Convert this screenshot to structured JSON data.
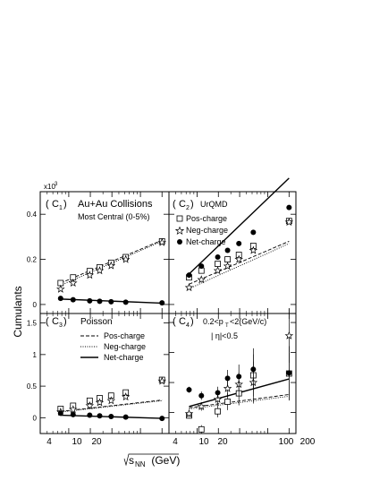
{
  "figure": {
    "scale_label": "x10",
    "scale_exponent": "3",
    "ylabel": "Cumulants",
    "xlabel_prefix": "s",
    "xlabel_sub": "NN",
    "xlabel_unit": " (GeV)",
    "x_ticks": [
      "4",
      "10",
      "20",
      "40",
      "100",
      "200"
    ],
    "x_scale": "log",
    "xlim": [
      4,
      250
    ],
    "colors": {
      "ink": "#000000",
      "background": "#ffffff"
    }
  },
  "chart_data": [
    {
      "type": "scatter",
      "id": "C1",
      "panel_label": "C",
      "panel_sub": "1",
      "annotations": [
        "Au+Au Collisions",
        "Most Central (0-5%)"
      ],
      "ylim": [
        -0.04,
        0.5
      ],
      "ytick_values": [
        0,
        0.2,
        0.4
      ],
      "ytick_labels": [
        "0",
        "0.2",
        "0.4"
      ],
      "x": [
        7.7,
        11.5,
        19.6,
        27,
        39,
        62.4,
        200
      ],
      "series": [
        {
          "name": "Pos-charge",
          "marker": "open-square",
          "values": [
            0.095,
            0.12,
            0.148,
            0.165,
            0.185,
            0.21,
            0.28
          ]
        },
        {
          "name": "Neg-charge",
          "marker": "open-star",
          "values": [
            0.068,
            0.095,
            0.13,
            0.15,
            0.172,
            0.2,
            0.275
          ]
        },
        {
          "name": "Net-charge",
          "marker": "filled-circle",
          "values": [
            0.027,
            0.021,
            0.016,
            0.014,
            0.012,
            0.01,
            0.007
          ]
        }
      ],
      "lines": [
        {
          "style": "dashed",
          "x": [
            7.7,
            200
          ],
          "y": [
            0.095,
            0.285
          ]
        },
        {
          "style": "dotted",
          "x": [
            7.7,
            200
          ],
          "y": [
            0.085,
            0.28
          ]
        },
        {
          "style": "solid",
          "x": [
            7.7,
            200
          ],
          "y": [
            0.024,
            0.006
          ]
        }
      ]
    },
    {
      "type": "scatter",
      "id": "C2",
      "panel_label": "C",
      "panel_sub": "2",
      "annotations": [
        "UrQMD"
      ],
      "ylim": [
        -0.04,
        0.5
      ],
      "ytick_values": [
        0,
        0.2,
        0.4
      ],
      "ytick_labels": [],
      "x": [
        7.7,
        11.5,
        19.6,
        27,
        39,
        62.4,
        200
      ],
      "series": [
        {
          "name": "Pos-charge",
          "marker": "open-square",
          "values": [
            0.12,
            0.15,
            0.18,
            0.2,
            0.22,
            0.26,
            0.37
          ]
        },
        {
          "name": "Neg-charge",
          "marker": "open-star",
          "values": [
            0.075,
            0.11,
            0.15,
            0.17,
            0.2,
            0.24,
            0.365
          ]
        },
        {
          "name": "Net-charge",
          "marker": "filled-circle",
          "values": [
            0.13,
            0.17,
            0.21,
            0.24,
            0.27,
            0.32,
            0.43
          ]
        }
      ],
      "lines": [
        {
          "style": "solid",
          "x": [
            7.7,
            200
          ],
          "y": [
            0.135,
            0.56
          ]
        },
        {
          "style": "dashed",
          "x": [
            7.7,
            200
          ],
          "y": [
            0.09,
            0.28
          ]
        },
        {
          "style": "dotted",
          "x": [
            7.7,
            200
          ],
          "y": [
            0.07,
            0.27
          ]
        }
      ]
    },
    {
      "type": "scatter",
      "id": "C3",
      "panel_label": "C",
      "panel_sub": "3",
      "annotations": [
        "Poisson"
      ],
      "legend_position": "top-center",
      "ylim": [
        -0.25,
        1.65
      ],
      "ytick_values": [
        0,
        0.5,
        1,
        1.5
      ],
      "ytick_labels": [
        "0",
        "0.5",
        "1",
        "1.5"
      ],
      "x": [
        7.7,
        11.5,
        19.6,
        27,
        39,
        62.4,
        200
      ],
      "series": [
        {
          "name": "Pos-charge",
          "marker": "open-square",
          "values": [
            0.14,
            0.19,
            0.27,
            0.31,
            0.35,
            0.4,
            0.6
          ]
        },
        {
          "name": "Neg-charge",
          "marker": "open-star",
          "values": [
            0.09,
            0.13,
            0.19,
            0.24,
            0.27,
            0.33,
            0.58
          ]
        },
        {
          "name": "Net-charge",
          "marker": "filled-circle",
          "values": [
            0.07,
            0.05,
            0.04,
            0.03,
            0.02,
            0.01,
            -0.01
          ]
        }
      ],
      "lines": [
        {
          "name": "Pos-charge",
          "style": "dashed",
          "x": [
            7.7,
            200
          ],
          "y": [
            0.1,
            0.28
          ]
        },
        {
          "name": "Neg-charge",
          "style": "dotted",
          "x": [
            7.7,
            200
          ],
          "y": [
            0.09,
            0.27
          ]
        },
        {
          "name": "Net-charge",
          "style": "solid",
          "x": [
            7.7,
            200
          ],
          "y": [
            0.04,
            -0.01
          ]
        }
      ]
    },
    {
      "type": "scatter",
      "id": "C4",
      "panel_label": "C",
      "panel_sub": "4",
      "annotations": [
        "0.2<p",
        "T",
        "<2(GeV/c)",
        "| η|<0.5"
      ],
      "ylim": [
        -0.35,
        1.65
      ],
      "ytick_values": [
        0,
        0.5,
        1,
        1.5
      ],
      "ytick_labels": [],
      "x": [
        7.7,
        11.5,
        19.6,
        27,
        39,
        62.4,
        200
      ],
      "series": [
        {
          "name": "Pos-charge",
          "marker": "open-square",
          "values": [
            -0.05,
            -0.28,
            0.02,
            0.18,
            0.32,
            0.62,
            0.65
          ],
          "errors": [
            0.05,
            0.07,
            0.1,
            0.14,
            0.2,
            0.35,
            0.45
          ]
        },
        {
          "name": "Neg-charge",
          "marker": "open-star",
          "values": [
            -0.02,
            0.1,
            0.22,
            0.4,
            0.47,
            0.5,
            1.28
          ],
          "errors": [
            0.05,
            0.07,
            0.1,
            0.14,
            0.2,
            0.35,
            0.45
          ]
        },
        {
          "name": "Net-charge",
          "marker": "filled-circle",
          "values": [
            0.38,
            0.28,
            0.33,
            0.57,
            0.6,
            0.72,
            0.66
          ],
          "errors": [
            0.05,
            0.07,
            0.1,
            0.14,
            0.2,
            0.35,
            0.45
          ]
        }
      ],
      "lines": [
        {
          "style": "solid",
          "x": [
            7.7,
            200
          ],
          "y": [
            0.1,
            0.56
          ]
        },
        {
          "style": "dashed",
          "x": [
            7.7,
            200
          ],
          "y": [
            0.08,
            0.3
          ]
        },
        {
          "style": "dotted",
          "x": [
            7.7,
            200
          ],
          "y": [
            0.06,
            0.27
          ]
        }
      ]
    }
  ]
}
